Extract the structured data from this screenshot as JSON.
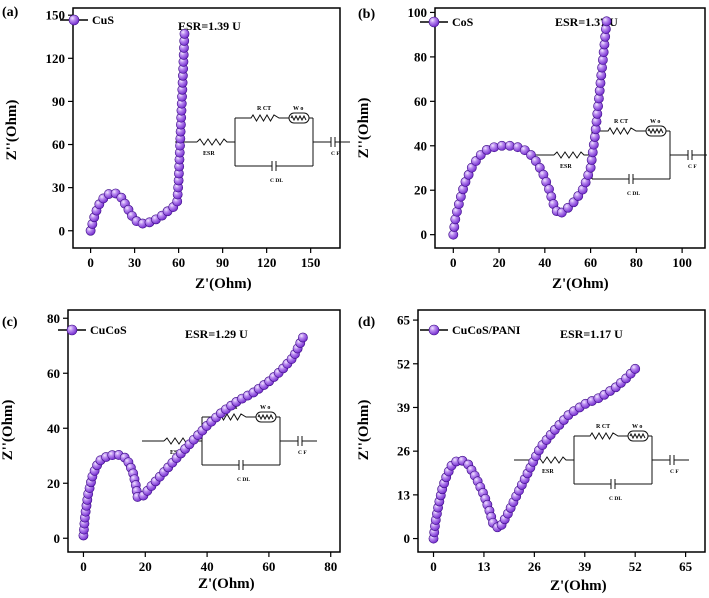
{
  "chart_data": [
    {
      "type": "scatter",
      "panel_label": "(a)",
      "legend": "CuS",
      "esr_text": "ESR=1.39 U",
      "xlabel": "Z'(Ohm)",
      "ylabel": "Z''(Ohm)",
      "xlim": [
        -12,
        170
      ],
      "ylim": [
        -12,
        155
      ],
      "xticks": [
        0,
        30,
        60,
        90,
        120,
        150
      ],
      "yticks": [
        0,
        30,
        60,
        90,
        120,
        150
      ],
      "circuit_labels": {
        "rct": "R CT",
        "w": "W o",
        "esr": "ESR",
        "cdl": "C DL",
        "cf": "C F"
      },
      "series": [
        {
          "name": "CuS",
          "anchors": [
            [
              0,
              0
            ],
            [
              2,
              8
            ],
            [
              5,
              17
            ],
            [
              9,
              23
            ],
            [
              13,
              26
            ],
            [
              17,
              26
            ],
            [
              21,
              23
            ],
            [
              25,
              16
            ],
            [
              29,
              9
            ],
            [
              33,
              5
            ],
            [
              38,
              5
            ],
            [
              43,
              7
            ],
            [
              48,
              10
            ],
            [
              53,
              14
            ],
            [
              57,
              17
            ],
            [
              59,
              20
            ],
            [
              60,
              35
            ],
            [
              61,
              60
            ],
            [
              62,
              85
            ],
            [
              63,
              110
            ],
            [
              64,
              137
            ]
          ],
          "n": 44
        }
      ]
    },
    {
      "type": "scatter",
      "panel_label": "(b)",
      "legend": "CoS",
      "esr_text": "ESR=1.37 U",
      "xlabel": "Z'(Ohm)",
      "ylabel": "Z''(Ohm)",
      "xlim": [
        -8,
        110
      ],
      "ylim": [
        -6,
        102
      ],
      "xticks": [
        0,
        20,
        40,
        60,
        80,
        100
      ],
      "yticks": [
        0,
        20,
        40,
        60,
        80,
        100
      ],
      "circuit_labels": {
        "rct": "R CT",
        "w": "W o",
        "esr": "ESR",
        "cdl": "C DL",
        "cf": "C F"
      },
      "series": [
        {
          "name": "CoS",
          "anchors": [
            [
              0,
              0
            ],
            [
              1,
              8
            ],
            [
              3,
              16
            ],
            [
              5,
              23
            ],
            [
              8,
              30
            ],
            [
              11,
              35
            ],
            [
              15,
              38.5
            ],
            [
              20,
              40
            ],
            [
              25,
              40
            ],
            [
              30,
              39
            ],
            [
              35,
              35
            ],
            [
              39,
              28
            ],
            [
              42,
              20
            ],
            [
              44,
              13
            ],
            [
              46,
              9
            ],
            [
              49,
              11
            ],
            [
              53,
              15
            ],
            [
              57,
              21
            ],
            [
              60,
              30
            ],
            [
              62,
              45
            ],
            [
              64,
              65
            ],
            [
              66,
              85
            ],
            [
              67,
              96
            ]
          ],
          "n": 54
        }
      ]
    },
    {
      "type": "scatter",
      "panel_label": "(c)",
      "legend": "CuCoS",
      "esr_text": "ESR=1.29 U",
      "xlabel": "Z'(Ohm)",
      "ylabel": "Z''(Ohm)",
      "xlim": [
        -5,
        83
      ],
      "ylim": [
        -5,
        83
      ],
      "xticks": [
        0,
        20,
        40,
        60,
        80
      ],
      "yticks": [
        0,
        20,
        40,
        60,
        80
      ],
      "circuit_labels": {
        "rct": "R CT",
        "w": "W o",
        "esr": "ESR",
        "cdl": "C DL",
        "cf": "C F"
      },
      "series": [
        {
          "name": "CuCoS",
          "anchors": [
            [
              0,
              1
            ],
            [
              0.5,
              8
            ],
            [
              1.5,
              16
            ],
            [
              3,
              23
            ],
            [
              5,
              28
            ],
            [
              8,
              30
            ],
            [
              11,
              30.5
            ],
            [
              14,
              29
            ],
            [
              16,
              24
            ],
            [
              17,
              19
            ],
            [
              17.5,
              15
            ],
            [
              19,
              15
            ],
            [
              22,
              19
            ],
            [
              26,
              24
            ],
            [
              30,
              29
            ],
            [
              35,
              35
            ],
            [
              40,
              41
            ],
            [
              45,
              46
            ],
            [
              50,
              50
            ],
            [
              55,
              53
            ],
            [
              60,
              57
            ],
            [
              64,
              61
            ],
            [
              68,
              66
            ],
            [
              71,
              73
            ]
          ],
          "n": 62
        }
      ]
    },
    {
      "type": "scatter",
      "panel_label": "(d)",
      "legend": "CuCoS/PANI",
      "esr_text": "ESR=1.17 U",
      "xlabel": "Z'(Ohm)",
      "ylabel": "Z''(Ohm)",
      "xlim": [
        -4,
        70
      ],
      "ylim": [
        -4,
        68
      ],
      "xticks": [
        0,
        13,
        26,
        39,
        52,
        65
      ],
      "yticks": [
        0,
        13,
        26,
        39,
        52,
        65
      ],
      "circuit_labels": {
        "rct": "R CT",
        "w": "W o",
        "esr": "ESR",
        "cdl": "C DL",
        "cf": "C F"
      },
      "series": [
        {
          "name": "CuCoS/PANI",
          "anchors": [
            [
              0,
              0
            ],
            [
              0.5,
              5
            ],
            [
              1.3,
              10
            ],
            [
              2.3,
              15
            ],
            [
              3.5,
              19
            ],
            [
              5,
              22.5
            ],
            [
              7,
              23.5
            ],
            [
              9,
              22
            ],
            [
              11,
              18
            ],
            [
              13,
              13
            ],
            [
              14.5,
              8
            ],
            [
              15.5,
              4
            ],
            [
              17,
              3
            ],
            [
              19,
              7
            ],
            [
              21.5,
              13
            ],
            [
              24.5,
              20
            ],
            [
              27.5,
              27
            ],
            [
              31,
              32
            ],
            [
              35,
              37
            ],
            [
              39,
              40
            ],
            [
              43,
              42
            ],
            [
              47,
              45
            ],
            [
              50,
              48
            ],
            [
              52,
              50.5
            ]
          ],
          "n": 60
        }
      ]
    }
  ]
}
